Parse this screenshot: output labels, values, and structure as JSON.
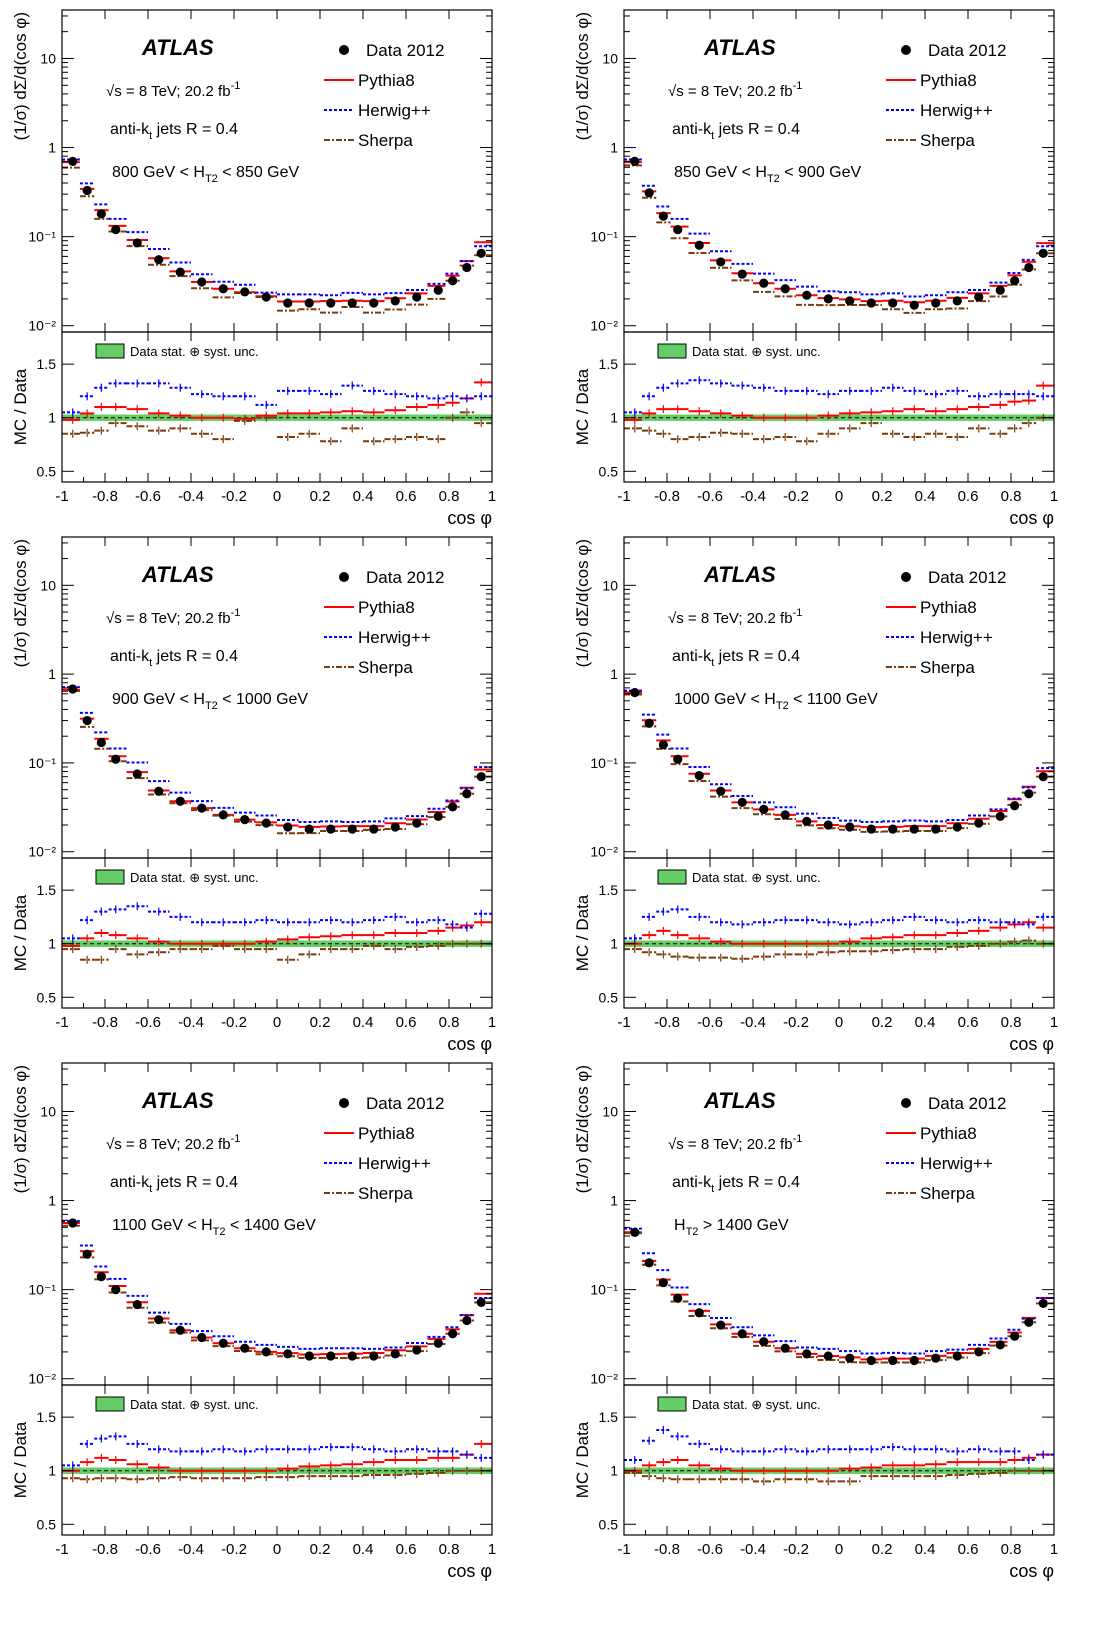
{
  "common": {
    "experiment": "ATLAS",
    "energy_label": "√s = 8 TeV; 20.2 fb",
    "energy_sup": "-1",
    "jets_label_pre": "anti-k",
    "jets_label_sub": "t",
    "jets_label_post": " jets R = 0.4",
    "ylabel_top": "(1/σ) dΣ/d(cos φ)",
    "ylabel_ratio": "MC / Data",
    "xlabel": "cos φ",
    "legend": {
      "data": "Data 2012",
      "pythia": "Pythia8",
      "herwig": "Herwig++",
      "sherpa": "Sherpa"
    },
    "band_label": "Data stat. ⊕ syst. unc.",
    "colors": {
      "data": "#000000",
      "pythia": "#ff0000",
      "herwig": "#0000ff",
      "sherpa": "#7a3b0c",
      "band": "#66cc66"
    }
  },
  "chart_data": [
    {
      "type": "scatter",
      "region": {
        "pre": "800 GeV < H",
        "sub": "T2",
        "post": " < 850 GeV"
      },
      "x": [
        -0.95,
        -0.883,
        -0.817,
        -0.75,
        -0.65,
        -0.55,
        -0.45,
        -0.35,
        -0.25,
        -0.15,
        -0.05,
        0.05,
        0.15,
        0.25,
        0.35,
        0.45,
        0.55,
        0.65,
        0.75,
        0.817,
        0.883,
        0.95
      ],
      "xlim": [
        -1,
        1
      ],
      "ylim_top": [
        0.0085,
        35
      ],
      "yscale_top": "log",
      "ylim_ratio": [
        0.4,
        1.8
      ],
      "xticks": [
        -1,
        -0.8,
        -0.6,
        -0.4,
        -0.2,
        0,
        0.2,
        0.4,
        0.6,
        0.8,
        1
      ],
      "yticks_top": [
        "10⁻²",
        "10⁻¹",
        "1",
        "10"
      ],
      "yticks_ratio": [
        "0.5",
        "1",
        "1.5"
      ],
      "series": [
        {
          "name": "Data 2012",
          "values": [
            0.7,
            0.33,
            0.18,
            0.12,
            0.085,
            0.055,
            0.04,
            0.031,
            0.026,
            0.024,
            0.021,
            0.018,
            0.018,
            0.018,
            0.018,
            0.018,
            0.019,
            0.021,
            0.025,
            0.032,
            0.045,
            0.065
          ]
        },
        {
          "name": "Pythia8",
          "ratio": [
            0.98,
            1.04,
            1.1,
            1.1,
            1.08,
            1.04,
            1.02,
            1.0,
            1.0,
            0.99,
            1.02,
            1.04,
            1.04,
            1.05,
            1.06,
            1.05,
            1.07,
            1.1,
            1.12,
            1.14,
            1.18,
            1.33
          ]
        },
        {
          "name": "Herwig++",
          "ratio": [
            1.05,
            1.2,
            1.28,
            1.32,
            1.32,
            1.32,
            1.28,
            1.22,
            1.2,
            1.2,
            1.12,
            1.25,
            1.25,
            1.22,
            1.3,
            1.25,
            1.22,
            1.2,
            1.18,
            1.2,
            1.18,
            1.2
          ]
        },
        {
          "name": "Sherpa",
          "ratio": [
            0.85,
            0.86,
            0.88,
            0.95,
            0.92,
            0.88,
            0.9,
            0.85,
            0.8,
            0.97,
            1.0,
            0.82,
            0.85,
            0.78,
            0.9,
            0.78,
            0.8,
            0.82,
            0.8,
            1.0,
            1.05,
            0.95
          ]
        }
      ]
    },
    {
      "type": "scatter",
      "region": {
        "pre": "850 GeV < H",
        "sub": "T2",
        "post": " < 900 GeV"
      },
      "x": [
        -0.95,
        -0.883,
        -0.817,
        -0.75,
        -0.65,
        -0.55,
        -0.45,
        -0.35,
        -0.25,
        -0.15,
        -0.05,
        0.05,
        0.15,
        0.25,
        0.35,
        0.45,
        0.55,
        0.65,
        0.75,
        0.817,
        0.883,
        0.95
      ],
      "xlim": [
        -1,
        1
      ],
      "ylim_top": [
        0.0085,
        35
      ],
      "yscale_top": "log",
      "ylim_ratio": [
        0.4,
        1.8
      ],
      "xticks": [
        -1,
        -0.8,
        -0.6,
        -0.4,
        -0.2,
        0,
        0.2,
        0.4,
        0.6,
        0.8,
        1
      ],
      "yticks_top": [
        "10⁻²",
        "10⁻¹",
        "1",
        "10"
      ],
      "yticks_ratio": [
        "0.5",
        "1",
        "1.5"
      ],
      "series": [
        {
          "name": "Data 2012",
          "values": [
            0.7,
            0.31,
            0.17,
            0.12,
            0.08,
            0.052,
            0.038,
            0.03,
            0.026,
            0.022,
            0.02,
            0.019,
            0.018,
            0.018,
            0.017,
            0.018,
            0.019,
            0.021,
            0.025,
            0.032,
            0.045,
            0.065
          ]
        },
        {
          "name": "Pythia8",
          "ratio": [
            0.98,
            1.04,
            1.08,
            1.08,
            1.06,
            1.04,
            1.02,
            1.0,
            1.0,
            1.0,
            1.02,
            1.04,
            1.05,
            1.06,
            1.08,
            1.06,
            1.08,
            1.1,
            1.12,
            1.15,
            1.16,
            1.3
          ]
        },
        {
          "name": "Herwig++",
          "ratio": [
            1.05,
            1.2,
            1.28,
            1.32,
            1.35,
            1.32,
            1.3,
            1.28,
            1.25,
            1.25,
            1.22,
            1.25,
            1.25,
            1.28,
            1.25,
            1.22,
            1.25,
            1.2,
            1.22,
            1.22,
            1.22,
            1.2
          ]
        },
        {
          "name": "Sherpa",
          "ratio": [
            0.9,
            0.88,
            0.85,
            0.8,
            0.82,
            0.86,
            0.85,
            0.8,
            0.82,
            0.78,
            0.85,
            0.9,
            0.95,
            0.85,
            0.82,
            0.85,
            0.82,
            0.9,
            0.85,
            0.9,
            0.95,
            1.0
          ]
        }
      ]
    },
    {
      "type": "scatter",
      "region": {
        "pre": "900 GeV < H",
        "sub": "T2",
        "post": " < 1000 GeV"
      },
      "x": [
        -0.95,
        -0.883,
        -0.817,
        -0.75,
        -0.65,
        -0.55,
        -0.45,
        -0.35,
        -0.25,
        -0.15,
        -0.05,
        0.05,
        0.15,
        0.25,
        0.35,
        0.45,
        0.55,
        0.65,
        0.75,
        0.817,
        0.883,
        0.95
      ],
      "xlim": [
        -1,
        1
      ],
      "ylim_top": [
        0.0085,
        35
      ],
      "yscale_top": "log",
      "ylim_ratio": [
        0.4,
        1.8
      ],
      "xticks": [
        -1,
        -0.8,
        -0.6,
        -0.4,
        -0.2,
        0,
        0.2,
        0.4,
        0.6,
        0.8,
        1
      ],
      "yticks_top": [
        "10⁻²",
        "10⁻¹",
        "1",
        "10"
      ],
      "yticks_ratio": [
        "0.5",
        "1",
        "1.5"
      ],
      "series": [
        {
          "name": "Data 2012",
          "values": [
            0.68,
            0.3,
            0.17,
            0.11,
            0.075,
            0.048,
            0.037,
            0.031,
            0.026,
            0.023,
            0.021,
            0.019,
            0.018,
            0.018,
            0.018,
            0.018,
            0.019,
            0.021,
            0.025,
            0.032,
            0.045,
            0.07
          ]
        },
        {
          "name": "Pythia8",
          "ratio": [
            0.98,
            1.05,
            1.1,
            1.08,
            1.05,
            1.02,
            1.0,
            1.0,
            1.0,
            1.0,
            1.02,
            1.04,
            1.06,
            1.07,
            1.08,
            1.08,
            1.1,
            1.1,
            1.12,
            1.15,
            1.17,
            1.2
          ]
        },
        {
          "name": "Herwig++",
          "ratio": [
            1.05,
            1.22,
            1.3,
            1.32,
            1.35,
            1.3,
            1.25,
            1.2,
            1.2,
            1.2,
            1.22,
            1.2,
            1.2,
            1.22,
            1.2,
            1.22,
            1.25,
            1.2,
            1.22,
            1.18,
            1.15,
            1.28
          ]
        },
        {
          "name": "Sherpa",
          "ratio": [
            0.95,
            0.85,
            0.85,
            0.95,
            0.9,
            0.92,
            0.95,
            0.95,
            0.98,
            0.95,
            0.95,
            0.85,
            0.9,
            0.95,
            0.95,
            0.98,
            0.95,
            0.97,
            0.98,
            1.0,
            1.0,
            1.0
          ]
        }
      ]
    },
    {
      "type": "scatter",
      "region": {
        "pre": "1000 GeV < H",
        "sub": "T2",
        "post": " < 1100 GeV"
      },
      "x": [
        -0.95,
        -0.883,
        -0.817,
        -0.75,
        -0.65,
        -0.55,
        -0.45,
        -0.35,
        -0.25,
        -0.15,
        -0.05,
        0.05,
        0.15,
        0.25,
        0.35,
        0.45,
        0.55,
        0.65,
        0.75,
        0.817,
        0.883,
        0.95
      ],
      "xlim": [
        -1,
        1
      ],
      "ylim_top": [
        0.0085,
        35
      ],
      "yscale_top": "log",
      "ylim_ratio": [
        0.4,
        1.8
      ],
      "xticks": [
        -1,
        -0.8,
        -0.6,
        -0.4,
        -0.2,
        0,
        0.2,
        0.4,
        0.6,
        0.8,
        1
      ],
      "yticks_top": [
        "10⁻²",
        "10⁻¹",
        "1",
        "10"
      ],
      "yticks_ratio": [
        "0.5",
        "1",
        "1.5"
      ],
      "series": [
        {
          "name": "Data 2012",
          "values": [
            0.62,
            0.28,
            0.16,
            0.11,
            0.072,
            0.048,
            0.036,
            0.03,
            0.026,
            0.022,
            0.02,
            0.019,
            0.018,
            0.018,
            0.018,
            0.018,
            0.019,
            0.021,
            0.025,
            0.033,
            0.045,
            0.07
          ]
        },
        {
          "name": "Pythia8",
          "ratio": [
            1.0,
            1.08,
            1.12,
            1.08,
            1.05,
            1.02,
            1.0,
            1.0,
            1.0,
            1.0,
            1.0,
            1.02,
            1.05,
            1.06,
            1.08,
            1.08,
            1.1,
            1.12,
            1.15,
            1.18,
            1.2,
            1.15
          ]
        },
        {
          "name": "Herwig++",
          "ratio": [
            1.05,
            1.25,
            1.3,
            1.32,
            1.25,
            1.2,
            1.18,
            1.2,
            1.22,
            1.22,
            1.2,
            1.18,
            1.2,
            1.22,
            1.25,
            1.22,
            1.2,
            1.22,
            1.2,
            1.2,
            1.18,
            1.25
          ]
        },
        {
          "name": "Sherpa",
          "ratio": [
            0.95,
            0.92,
            0.9,
            0.88,
            0.87,
            0.87,
            0.86,
            0.88,
            0.9,
            0.9,
            0.92,
            0.93,
            0.93,
            0.94,
            0.95,
            0.95,
            0.97,
            0.98,
            1.0,
            1.02,
            1.03,
            1.0
          ]
        }
      ]
    },
    {
      "type": "scatter",
      "region": {
        "pre": "1100 GeV < H",
        "sub": "T2",
        "post": " < 1400 GeV"
      },
      "x": [
        -0.95,
        -0.883,
        -0.817,
        -0.75,
        -0.65,
        -0.55,
        -0.45,
        -0.35,
        -0.25,
        -0.15,
        -0.05,
        0.05,
        0.15,
        0.25,
        0.35,
        0.45,
        0.55,
        0.65,
        0.75,
        0.817,
        0.883,
        0.95
      ],
      "xlim": [
        -1,
        1
      ],
      "ylim_top": [
        0.0085,
        35
      ],
      "yscale_top": "log",
      "ylim_ratio": [
        0.4,
        1.8
      ],
      "xticks": [
        -1,
        -0.8,
        -0.6,
        -0.4,
        -0.2,
        0,
        0.2,
        0.4,
        0.6,
        0.8,
        1
      ],
      "yticks_top": [
        "10⁻²",
        "10⁻¹",
        "1",
        "10"
      ],
      "yticks_ratio": [
        "0.5",
        "1",
        "1.5"
      ],
      "series": [
        {
          "name": "Data 2012",
          "values": [
            0.56,
            0.25,
            0.14,
            0.1,
            0.068,
            0.046,
            0.035,
            0.029,
            0.025,
            0.022,
            0.02,
            0.019,
            0.018,
            0.018,
            0.018,
            0.018,
            0.019,
            0.021,
            0.025,
            0.032,
            0.045,
            0.072
          ]
        },
        {
          "name": "Pythia8",
          "ratio": [
            1.0,
            1.08,
            1.12,
            1.1,
            1.06,
            1.03,
            1.0,
            1.0,
            1.0,
            1.0,
            1.0,
            1.02,
            1.04,
            1.05,
            1.06,
            1.08,
            1.1,
            1.1,
            1.12,
            1.12,
            1.15,
            1.25
          ]
        },
        {
          "name": "Herwig++",
          "ratio": [
            1.05,
            1.25,
            1.3,
            1.32,
            1.25,
            1.2,
            1.18,
            1.18,
            1.2,
            1.18,
            1.2,
            1.2,
            1.2,
            1.22,
            1.22,
            1.2,
            1.18,
            1.2,
            1.18,
            1.18,
            1.15,
            1.12
          ]
        },
        {
          "name": "Sherpa",
          "ratio": [
            0.93,
            0.92,
            0.93,
            0.93,
            0.92,
            0.93,
            0.94,
            0.93,
            0.93,
            0.93,
            0.94,
            0.94,
            0.95,
            0.95,
            0.95,
            0.96,
            0.96,
            0.97,
            0.98,
            1.0,
            1.0,
            1.0
          ]
        }
      ]
    },
    {
      "type": "scatter",
      "region": {
        "pre": "H",
        "sub": "T2",
        "post": " > 1400 GeV"
      },
      "x": [
        -0.95,
        -0.883,
        -0.817,
        -0.75,
        -0.65,
        -0.55,
        -0.45,
        -0.35,
        -0.25,
        -0.15,
        -0.05,
        0.05,
        0.15,
        0.25,
        0.35,
        0.45,
        0.55,
        0.65,
        0.75,
        0.817,
        0.883,
        0.95
      ],
      "xlim": [
        -1,
        1
      ],
      "ylim_top": [
        0.0085,
        35
      ],
      "yscale_top": "log",
      "ylim_ratio": [
        0.4,
        1.8
      ],
      "xticks": [
        -1,
        -0.8,
        -0.6,
        -0.4,
        -0.2,
        0,
        0.2,
        0.4,
        0.6,
        0.8,
        1
      ],
      "yticks_top": [
        "10⁻²",
        "10⁻¹",
        "1",
        "10"
      ],
      "yticks_ratio": [
        "0.5",
        "1",
        "1.5"
      ],
      "series": [
        {
          "name": "Data 2012",
          "values": [
            0.44,
            0.2,
            0.12,
            0.08,
            0.055,
            0.04,
            0.032,
            0.026,
            0.022,
            0.019,
            0.018,
            0.017,
            0.016,
            0.016,
            0.016,
            0.017,
            0.018,
            0.02,
            0.024,
            0.03,
            0.043,
            0.07
          ]
        },
        {
          "name": "Pythia8",
          "ratio": [
            1.0,
            1.05,
            1.08,
            1.1,
            1.05,
            1.02,
            1.0,
            1.0,
            1.0,
            1.0,
            1.0,
            1.02,
            1.03,
            1.05,
            1.05,
            1.06,
            1.08,
            1.08,
            1.08,
            1.1,
            1.12,
            1.15
          ]
        },
        {
          "name": "Herwig++",
          "ratio": [
            1.1,
            1.28,
            1.38,
            1.32,
            1.25,
            1.2,
            1.18,
            1.18,
            1.2,
            1.18,
            1.2,
            1.2,
            1.2,
            1.22,
            1.2,
            1.2,
            1.18,
            1.2,
            1.18,
            1.18,
            1.1,
            1.15
          ]
        },
        {
          "name": "Sherpa",
          "ratio": [
            0.98,
            0.95,
            0.93,
            0.92,
            0.92,
            0.92,
            0.92,
            0.9,
            0.92,
            0.92,
            0.9,
            0.9,
            0.95,
            0.95,
            0.95,
            0.95,
            0.96,
            0.97,
            0.98,
            1.0,
            1.0,
            1.0
          ]
        }
      ]
    }
  ]
}
